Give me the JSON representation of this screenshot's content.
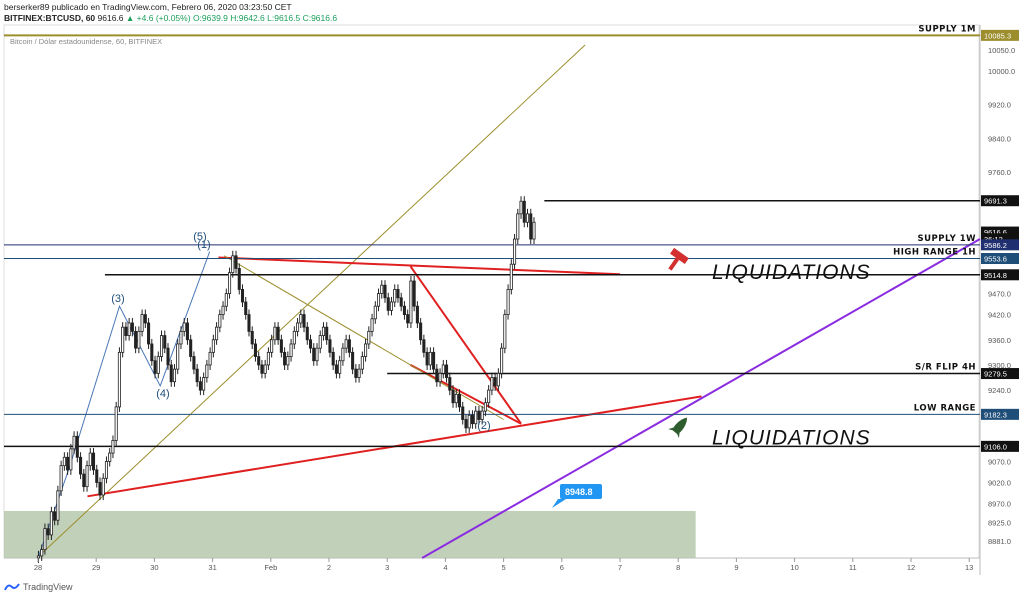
{
  "header": {
    "line1": "berserker89 publicado en TradingView.com, Febrero 06, 2020 03:23:50 CET",
    "line2_symbol": "BITFINEX:BTCUSD, 60",
    "line2_price": "9616.6",
    "line2_change": "▲ +4.6 (+0.05%)",
    "line2_ohlc": "O:9639.9 H:9642.6 L:9616.5 C:9616.6",
    "subtitle": "Bitcoin / Dólar estadounidense, 60, BITFINEX"
  },
  "footer": {
    "brand": "TradingView"
  },
  "colors": {
    "up": "#333333",
    "down": "#333333",
    "red": "#e02020",
    "purple": "#8a2be2",
    "olive": "#9c8e2c",
    "blue": "#4a78b8",
    "navy": "#1f2f6f",
    "zone": "#b6c8ad",
    "tagblue": "#2196f3"
  },
  "chart_data": {
    "type": "candlestick",
    "title": "Bitcoin / Dólar estadounidense, 60, BITFINEX",
    "ylim": [
      8840,
      10110
    ],
    "y_ticks": [
      10050.0,
      10000.0,
      9920.0,
      9840.0,
      9760.0,
      9691.3,
      9616.6,
      9586.2,
      9553.6,
      9514.8,
      9470.0,
      9420.0,
      9360.0,
      9300.0,
      9279.5,
      9240.0,
      9182.3,
      9106.0,
      9070.0,
      9020.0,
      8970.0,
      8925.0,
      8881.0
    ],
    "x_ticks": [
      "28",
      "29",
      "30",
      "31",
      "Feb",
      "2",
      "3",
      "4",
      "5",
      "6",
      "7",
      "8",
      "9",
      "10",
      "11",
      "12",
      "13"
    ],
    "price_tags": [
      {
        "value": 10085.3,
        "text": "10085.3",
        "color": "#9c8e2c"
      },
      {
        "value": 9691.3,
        "text": "9691.3",
        "color": "#111111"
      },
      {
        "value": 9616.6,
        "text": "9616.6",
        "color": "#111111"
      },
      {
        "value": 9600.5,
        "text": "36:12",
        "color": "#111111"
      },
      {
        "value": 9586.2,
        "text": "9586.2",
        "color": "#1f2f6f"
      },
      {
        "value": 9553.6,
        "text": "9553.6",
        "color": "#1f4e79"
      },
      {
        "value": 9514.8,
        "text": "9514.8",
        "color": "#111111"
      },
      {
        "value": 9279.5,
        "text": "9279.5",
        "color": "#111111"
      },
      {
        "value": 9182.3,
        "text": "9182.3",
        "color": "#1f4e79"
      },
      {
        "value": 9106.0,
        "text": "9106.0",
        "color": "#111111"
      }
    ],
    "levels": [
      {
        "name": "SUPPLY 1M",
        "value": 10085.3,
        "color": "#9c8e2c",
        "x_start": -1.0,
        "width": 2
      },
      {
        "name": "SUPPLY 1W",
        "value": 9586.2,
        "color": "#1f2f6f",
        "x_start": -1.0,
        "width": 1
      },
      {
        "name": "HIGH RANGE 1H",
        "value": 9553.6,
        "color": "#1f4e79",
        "x_start": -1.0,
        "width": 1
      },
      {
        "name": "",
        "value": 9514.8,
        "color": "#111111",
        "x_start": 1.15,
        "width": 1.5
      },
      {
        "name": "",
        "value": 9691.3,
        "color": "#111111",
        "x_start": 8.7,
        "width": 1.5
      },
      {
        "name": "S/R FLIP 4H",
        "value": 9279.5,
        "color": "#111111",
        "x_start": 6.0,
        "width": 1.5
      },
      {
        "name": "LOW RANGE",
        "value": 9182.3,
        "color": "#1f4e79",
        "x_start": -1.0,
        "width": 1
      },
      {
        "name": "",
        "value": 9106.0,
        "color": "#111111",
        "x_start": -0.75,
        "width": 1.5
      }
    ],
    "annotations": {
      "liquidations_upper": "LIQUIDATIONS",
      "liquidations_lower": "LIQUIDATIONS",
      "target_tag": "8948.8",
      "waves": [
        "(5)",
        "(1)",
        "(3)",
        "(4)",
        "(2)"
      ]
    },
    "candles": [
      [
        8840,
        8845
      ],
      [
        8845,
        8860
      ],
      [
        8860,
        8910
      ],
      [
        8910,
        8895
      ],
      [
        8895,
        8950
      ],
      [
        8950,
        8930
      ],
      [
        8930,
        9000
      ],
      [
        9000,
        9060
      ],
      [
        9060,
        9080
      ],
      [
        9080,
        9050
      ],
      [
        9050,
        9100
      ],
      [
        9100,
        9130
      ],
      [
        9130,
        9080
      ],
      [
        9080,
        9040
      ],
      [
        9040,
        9010
      ],
      [
        9010,
        9060
      ],
      [
        9060,
        9090
      ],
      [
        9090,
        9050
      ],
      [
        9050,
        9020
      ],
      [
        9020,
        8990
      ],
      [
        8990,
        9030
      ],
      [
        9030,
        9070
      ],
      [
        9070,
        9090
      ],
      [
        9090,
        9120
      ],
      [
        9120,
        9200
      ],
      [
        9200,
        9330
      ],
      [
        9330,
        9390
      ],
      [
        9390,
        9370
      ],
      [
        9370,
        9400
      ],
      [
        9400,
        9380
      ],
      [
        9380,
        9340
      ],
      [
        9340,
        9380
      ],
      [
        9380,
        9420
      ],
      [
        9420,
        9400
      ],
      [
        9400,
        9350
      ],
      [
        9350,
        9310
      ],
      [
        9310,
        9280
      ],
      [
        9280,
        9320
      ],
      [
        9320,
        9370
      ],
      [
        9370,
        9340
      ],
      [
        9340,
        9300
      ],
      [
        9300,
        9260
      ],
      [
        9260,
        9290
      ],
      [
        9290,
        9350
      ],
      [
        9350,
        9380
      ],
      [
        9380,
        9400
      ],
      [
        9400,
        9360
      ],
      [
        9360,
        9320
      ],
      [
        9320,
        9290
      ],
      [
        9290,
        9260
      ],
      [
        9260,
        9240
      ],
      [
        9240,
        9270
      ],
      [
        9270,
        9300
      ],
      [
        9300,
        9330
      ],
      [
        9330,
        9360
      ],
      [
        9360,
        9390
      ],
      [
        9390,
        9420
      ],
      [
        9420,
        9440
      ],
      [
        9440,
        9470
      ],
      [
        9470,
        9520
      ],
      [
        9520,
        9560
      ],
      [
        9560,
        9530
      ],
      [
        9530,
        9480
      ],
      [
        9480,
        9450
      ],
      [
        9450,
        9420
      ],
      [
        9420,
        9380
      ],
      [
        9380,
        9350
      ],
      [
        9350,
        9320
      ],
      [
        9320,
        9300
      ],
      [
        9300,
        9280
      ],
      [
        9280,
        9300
      ],
      [
        9300,
        9330
      ],
      [
        9330,
        9360
      ],
      [
        9360,
        9390
      ],
      [
        9390,
        9360
      ],
      [
        9360,
        9330
      ],
      [
        9330,
        9300
      ],
      [
        9300,
        9320
      ],
      [
        9320,
        9350
      ],
      [
        9350,
        9380
      ],
      [
        9380,
        9400
      ],
      [
        9400,
        9420
      ],
      [
        9420,
        9390
      ],
      [
        9390,
        9360
      ],
      [
        9360,
        9340
      ],
      [
        9340,
        9310
      ],
      [
        9310,
        9340
      ],
      [
        9340,
        9370
      ],
      [
        9370,
        9390
      ],
      [
        9390,
        9360
      ],
      [
        9360,
        9330
      ],
      [
        9330,
        9300
      ],
      [
        9300,
        9280
      ],
      [
        9280,
        9310
      ],
      [
        9310,
        9340
      ],
      [
        9340,
        9360
      ],
      [
        9360,
        9330
      ],
      [
        9330,
        9290
      ],
      [
        9290,
        9270
      ],
      [
        9270,
        9290
      ],
      [
        9290,
        9320
      ],
      [
        9320,
        9350
      ],
      [
        9350,
        9380
      ],
      [
        9380,
        9410
      ],
      [
        9410,
        9440
      ],
      [
        9440,
        9470
      ],
      [
        9470,
        9490
      ],
      [
        9490,
        9460
      ],
      [
        9460,
        9430
      ],
      [
        9430,
        9450
      ],
      [
        9450,
        9480
      ],
      [
        9480,
        9460
      ],
      [
        9460,
        9440
      ],
      [
        9440,
        9420
      ],
      [
        9420,
        9400
      ],
      [
        9400,
        9500
      ],
      [
        9500,
        9440
      ],
      [
        9440,
        9400
      ],
      [
        9400,
        9360
      ],
      [
        9360,
        9330
      ],
      [
        9330,
        9300
      ],
      [
        9300,
        9330
      ],
      [
        9330,
        9290
      ],
      [
        9290,
        9260
      ],
      [
        9260,
        9280
      ],
      [
        9280,
        9300
      ],
      [
        9300,
        9270
      ],
      [
        9270,
        9240
      ],
      [
        9240,
        9210
      ],
      [
        9210,
        9230
      ],
      [
        9230,
        9200
      ],
      [
        9200,
        9170
      ],
      [
        9170,
        9150
      ],
      [
        9150,
        9180
      ],
      [
        9180,
        9160
      ],
      [
        9160,
        9190
      ],
      [
        9190,
        9170
      ],
      [
        9170,
        9190
      ],
      [
        9190,
        9210
      ],
      [
        9210,
        9240
      ],
      [
        9240,
        9270
      ],
      [
        9270,
        9250
      ],
      [
        9250,
        9280
      ],
      [
        9280,
        9340
      ],
      [
        9340,
        9420
      ],
      [
        9420,
        9480
      ],
      [
        9480,
        9540
      ],
      [
        9540,
        9600
      ],
      [
        9600,
        9660
      ],
      [
        9660,
        9690
      ],
      [
        9690,
        9640
      ],
      [
        9640,
        9660
      ],
      [
        9660,
        9600
      ],
      [
        9600,
        9640
      ]
    ]
  }
}
